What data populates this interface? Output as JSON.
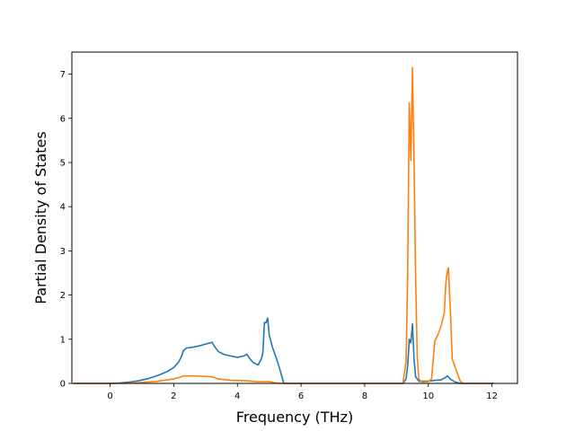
{
  "chart_data": {
    "type": "line",
    "title": "",
    "xlabel": "Frequency (THz)",
    "ylabel": "Partial Density of States",
    "xlim": [
      -1.2,
      12.8
    ],
    "ylim": [
      0,
      7.5
    ],
    "xticks": [
      0,
      2,
      4,
      6,
      8,
      10,
      12
    ],
    "yticks": [
      0,
      1,
      2,
      3,
      4,
      5,
      6,
      7
    ],
    "grid": false,
    "legend": "none",
    "series": [
      {
        "color": "#1f77b4",
        "points": [
          [
            -1.15,
            0
          ],
          [
            0,
            0
          ],
          [
            0.3,
            0.01
          ],
          [
            0.6,
            0.03
          ],
          [
            0.9,
            0.06
          ],
          [
            1.2,
            0.11
          ],
          [
            1.5,
            0.18
          ],
          [
            1.8,
            0.27
          ],
          [
            2.0,
            0.36
          ],
          [
            2.15,
            0.48
          ],
          [
            2.25,
            0.62
          ],
          [
            2.3,
            0.74
          ],
          [
            2.4,
            0.8
          ],
          [
            2.6,
            0.82
          ],
          [
            2.8,
            0.85
          ],
          [
            3.0,
            0.89
          ],
          [
            3.2,
            0.93
          ],
          [
            3.3,
            0.82
          ],
          [
            3.4,
            0.72
          ],
          [
            3.6,
            0.65
          ],
          [
            3.8,
            0.62
          ],
          [
            4.0,
            0.59
          ],
          [
            4.2,
            0.62
          ],
          [
            4.3,
            0.66
          ],
          [
            4.4,
            0.55
          ],
          [
            4.5,
            0.47
          ],
          [
            4.65,
            0.42
          ],
          [
            4.75,
            0.55
          ],
          [
            4.8,
            0.7
          ],
          [
            4.85,
            1.38
          ],
          [
            4.9,
            1.37
          ],
          [
            4.95,
            1.48
          ],
          [
            5.0,
            1.1
          ],
          [
            5.1,
            0.82
          ],
          [
            5.2,
            0.62
          ],
          [
            5.3,
            0.4
          ],
          [
            5.4,
            0.15
          ],
          [
            5.45,
            0.02
          ],
          [
            5.5,
            0
          ],
          [
            9.2,
            0
          ],
          [
            9.3,
            0.1
          ],
          [
            9.35,
            0.4
          ],
          [
            9.4,
            1.0
          ],
          [
            9.45,
            0.92
          ],
          [
            9.5,
            1.35
          ],
          [
            9.55,
            0.55
          ],
          [
            9.6,
            0.15
          ],
          [
            9.7,
            0.05
          ],
          [
            10.0,
            0.05
          ],
          [
            10.2,
            0.07
          ],
          [
            10.4,
            0.08
          ],
          [
            10.55,
            0.14
          ],
          [
            10.6,
            0.17
          ],
          [
            10.7,
            0.09
          ],
          [
            10.85,
            0.03
          ],
          [
            11.0,
            0
          ],
          [
            12.05,
            0
          ]
        ]
      },
      {
        "color": "#ff7f0e",
        "points": [
          [
            -1.15,
            0
          ],
          [
            0.5,
            0
          ],
          [
            1.0,
            0.02
          ],
          [
            1.5,
            0.05
          ],
          [
            2.0,
            0.1
          ],
          [
            2.2,
            0.14
          ],
          [
            2.3,
            0.17
          ],
          [
            2.6,
            0.17
          ],
          [
            3.0,
            0.16
          ],
          [
            3.2,
            0.15
          ],
          [
            3.4,
            0.1
          ],
          [
            3.8,
            0.07
          ],
          [
            4.3,
            0.06
          ],
          [
            4.6,
            0.04
          ],
          [
            5.0,
            0.04
          ],
          [
            5.2,
            0.01
          ],
          [
            5.4,
            0
          ],
          [
            9.2,
            0
          ],
          [
            9.3,
            0.5
          ],
          [
            9.35,
            2.5
          ],
          [
            9.4,
            6.35
          ],
          [
            9.45,
            5.05
          ],
          [
            9.5,
            7.15
          ],
          [
            9.55,
            5.0
          ],
          [
            9.6,
            2.4
          ],
          [
            9.65,
            0.6
          ],
          [
            9.7,
            0.1
          ],
          [
            9.8,
            0.03
          ],
          [
            10.0,
            0.04
          ],
          [
            10.1,
            0.1
          ],
          [
            10.2,
            0.95
          ],
          [
            10.3,
            1.1
          ],
          [
            10.4,
            1.3
          ],
          [
            10.5,
            1.6
          ],
          [
            10.55,
            2.3
          ],
          [
            10.6,
            2.55
          ],
          [
            10.63,
            2.62
          ],
          [
            10.7,
            1.5
          ],
          [
            10.75,
            0.55
          ],
          [
            10.85,
            0.35
          ],
          [
            11.0,
            0.05
          ],
          [
            11.1,
            0
          ],
          [
            12.05,
            0
          ]
        ]
      }
    ]
  }
}
